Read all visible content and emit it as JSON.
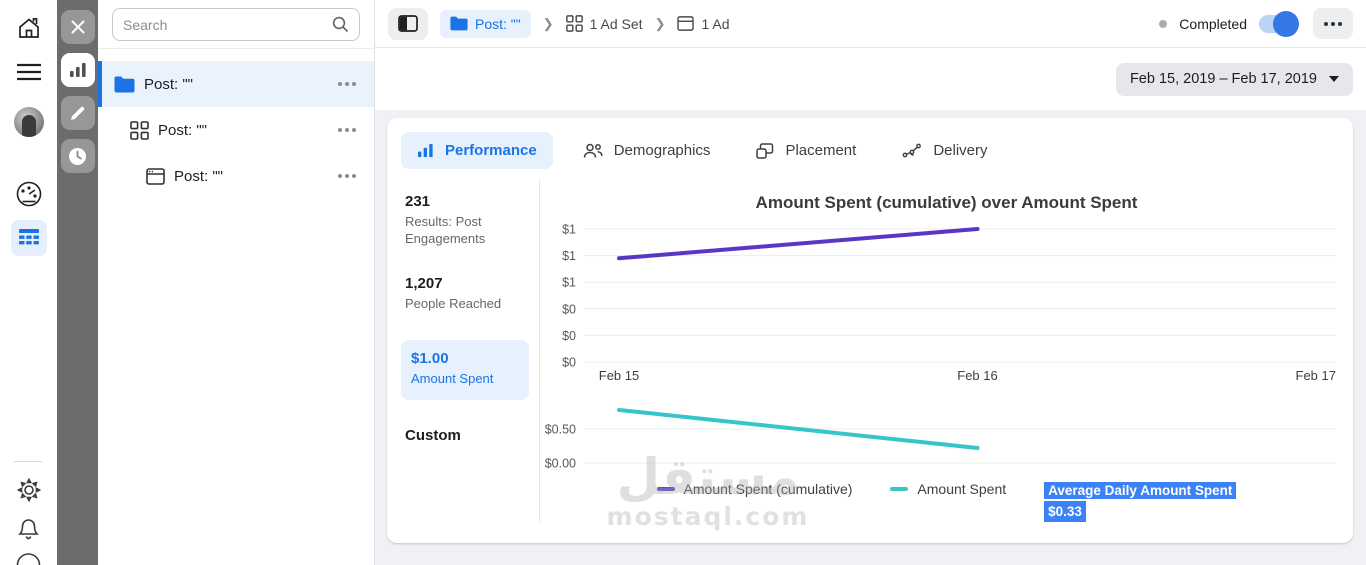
{
  "sidebar": {
    "icons": [
      "home-icon",
      "menu-icon",
      "user-avatar",
      "gauge-icon",
      "ads-table-icon",
      "settings-gear-icon",
      "notifications-bell-icon",
      "help-icon"
    ]
  },
  "tool_rail": {
    "icons": [
      "close-icon",
      "bar-chart-icon",
      "pencil-icon",
      "clock-icon"
    ]
  },
  "tree": {
    "search_placeholder": "Search",
    "items": [
      {
        "label": "Post: \"\"",
        "icon": "campaign-folder-icon",
        "selected": true
      },
      {
        "label": "Post: \"\"",
        "icon": "ad-set-grid-icon",
        "selected": false
      },
      {
        "label": "Post: \"\"",
        "icon": "ad-frame-icon",
        "selected": false
      }
    ]
  },
  "header": {
    "breadcrumb": [
      {
        "label": "Post: \"\"",
        "icon": "campaign-folder-icon"
      },
      {
        "label": "1 Ad Set",
        "icon": "ad-set-grid-icon"
      },
      {
        "label": "1 Ad",
        "icon": "ad-frame-icon"
      }
    ],
    "status": {
      "label": "Completed",
      "toggle_on": true
    }
  },
  "filters": {
    "date_range": "Feb 15, 2019 – Feb 17, 2019"
  },
  "tabs": [
    {
      "label": "Performance",
      "icon": "bar-chart-icon",
      "active": true
    },
    {
      "label": "Demographics",
      "icon": "people-icon",
      "active": false
    },
    {
      "label": "Placement",
      "icon": "overlap-squares-icon",
      "active": false
    },
    {
      "label": "Delivery",
      "icon": "route-dots-icon",
      "active": false
    }
  ],
  "metrics": [
    {
      "value": "231",
      "label": "Results: Post Engagements",
      "selected": false
    },
    {
      "value": "1,207",
      "label": "People Reached",
      "selected": false
    },
    {
      "value": "$1.00",
      "label": "Amount Spent",
      "selected": true
    },
    {
      "value": "Custom",
      "label": "",
      "selected": false
    }
  ],
  "chart_data": [
    {
      "type": "line",
      "title": "Amount Spent (cumulative) over Amount Spent",
      "x": [
        "Feb 15",
        "Feb 16",
        "Feb 17"
      ],
      "series": [
        {
          "name": "Amount Spent (cumulative)",
          "values": [
            0.78,
            1.0,
            null
          ],
          "color": "#5936c4"
        }
      ],
      "yticks": [
        1.0,
        0.8,
        0.6,
        0.4,
        0.2,
        0.0
      ],
      "ytick_labels": [
        "$1",
        "$1",
        "$1",
        "$0",
        "$0",
        "$0"
      ],
      "ylim": [
        0,
        1.05
      ],
      "grid": true,
      "show_x_labels": true
    },
    {
      "type": "line",
      "title": "",
      "x": [
        "Feb 15",
        "Feb 16",
        "Feb 17"
      ],
      "series": [
        {
          "name": "Amount Spent",
          "values": [
            0.78,
            0.22,
            null
          ],
          "color": "#36c5c8"
        }
      ],
      "yticks": [
        0.5,
        0.0
      ],
      "ytick_labels": [
        "$0.50",
        "$0.00"
      ],
      "ylim": [
        0,
        1.0
      ],
      "grid": true,
      "show_x_labels": false
    }
  ],
  "annotation": {
    "title": "Average Daily Amount Spent",
    "value": "$0.33"
  },
  "watermark": {
    "text_ar": "مستقل",
    "domain": "mostaql.com"
  },
  "colors": {
    "accent_blue": "#1b74e4",
    "light_blue_bg": "#e7f0fd",
    "purple_line": "#5936c4",
    "teal_line": "#36c5c8",
    "selection_blue": "#3b82f6",
    "toggle_on": "#3578e5"
  }
}
